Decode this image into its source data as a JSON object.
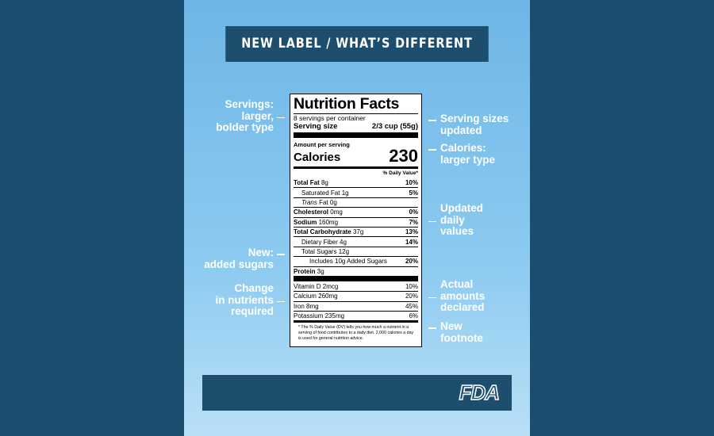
{
  "header": {
    "title": "NEW LABEL / WHAT’S DIFFERENT"
  },
  "annotations_left": [
    {
      "lines": [
        "Servings:",
        "larger,",
        "bolder type"
      ]
    },
    {
      "lines": [
        "New:",
        "added sugars"
      ]
    },
    {
      "lines": [
        "Change",
        "in nutrients",
        "required"
      ]
    }
  ],
  "annotations_right": [
    {
      "lines": [
        "Serving sizes",
        "updated"
      ]
    },
    {
      "lines": [
        "Calories:",
        "larger type"
      ]
    },
    {
      "lines": [
        "Updated",
        "daily",
        "values"
      ]
    },
    {
      "lines": [
        "Actual",
        "amounts",
        "declared"
      ]
    },
    {
      "lines": [
        "New",
        "footnote"
      ]
    }
  ],
  "label": {
    "title": "Nutrition Facts",
    "servings_per_container": "8 servings per container",
    "serving_size_label": "Serving size",
    "serving_size_value": "2/3 cup (55g)",
    "amount_per_serving": "Amount per serving",
    "calories_label": "Calories",
    "calories_value": 230,
    "daily_value_header": "% Daily Value*",
    "nutrients": [
      {
        "name": "Total Fat",
        "amount": "8g",
        "dv": "10%"
      },
      {
        "name": "Saturated Fat",
        "amount": "1g",
        "dv": "5%"
      },
      {
        "name": "Trans",
        "amount": "Fat 0g"
      },
      {
        "name": "Cholesterol",
        "amount": "0mg",
        "dv": "0%"
      },
      {
        "name": "Sodium",
        "amount": "160mg",
        "dv": "7%"
      },
      {
        "name": "Total Carbohydrate",
        "amount": "37g",
        "dv": "13%"
      },
      {
        "name": "Dietary Fiber",
        "amount": "4g",
        "dv": "14%"
      },
      {
        "name": "Total Sugars",
        "amount": "12g"
      },
      {
        "name": "Includes 10g Added Sugars",
        "dv": "20%"
      },
      {
        "name": "Protein",
        "amount": "3g"
      }
    ],
    "vitamins": [
      {
        "name": "Vitamin D",
        "amount": "2mcg",
        "dv": "10%"
      },
      {
        "name": "Calcium",
        "amount": "260mg",
        "dv": "20%"
      },
      {
        "name": "Iron",
        "amount": "8mg",
        "dv": "45%"
      },
      {
        "name": "Potassium",
        "amount": "235mg",
        "dv": "6%"
      }
    ],
    "footnote": "* The % Daily Value (DV) tells you how much a nutrient in a serving of food contributes to a daily diet. 2,000 calories a day is used for general nutrition advice."
  },
  "footer": {
    "logo": "FDA"
  }
}
